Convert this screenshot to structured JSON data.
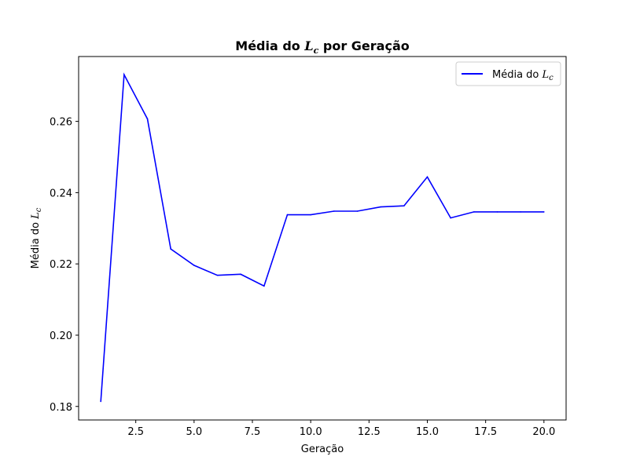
{
  "chart_data": {
    "type": "line",
    "title_prefix": "Média do ",
    "title_math": "L",
    "title_math_sub": "c",
    "title_suffix": " por Geração",
    "xlabel": "Geração",
    "ylabel_prefix": "Média do ",
    "ylabel_math": "L",
    "ylabel_math_sub": "c",
    "xlim": [
      0.05,
      20.95
    ],
    "ylim": [
      0.1762,
      0.2782
    ],
    "xticks": [
      2.5,
      5.0,
      7.5,
      10.0,
      12.5,
      15.0,
      17.5,
      20.0
    ],
    "xtick_labels": [
      "2.5",
      "5.0",
      "7.5",
      "10.0",
      "12.5",
      "15.0",
      "17.5",
      "20.0"
    ],
    "yticks": [
      0.18,
      0.2,
      0.22,
      0.24,
      0.26
    ],
    "ytick_labels": [
      "0.18",
      "0.20",
      "0.22",
      "0.24",
      "0.26"
    ],
    "grid": false,
    "legend_position": "top-right",
    "series": [
      {
        "name_prefix": "Média do ",
        "name_math": "L",
        "name_math_sub": "c",
        "color": "#0000ff",
        "x": [
          1,
          2,
          3,
          4,
          5,
          6,
          7,
          8,
          9,
          10,
          11,
          12,
          13,
          14,
          15,
          16,
          17,
          18,
          19,
          20
        ],
        "y": [
          0.1814,
          0.2731,
          0.2607,
          0.2242,
          0.2196,
          0.2168,
          0.2171,
          0.2138,
          0.2338,
          0.2338,
          0.2348,
          0.2348,
          0.236,
          0.2363,
          0.2444,
          0.2329,
          0.2346,
          0.2346,
          0.2346,
          0.2346
        ]
      }
    ]
  }
}
